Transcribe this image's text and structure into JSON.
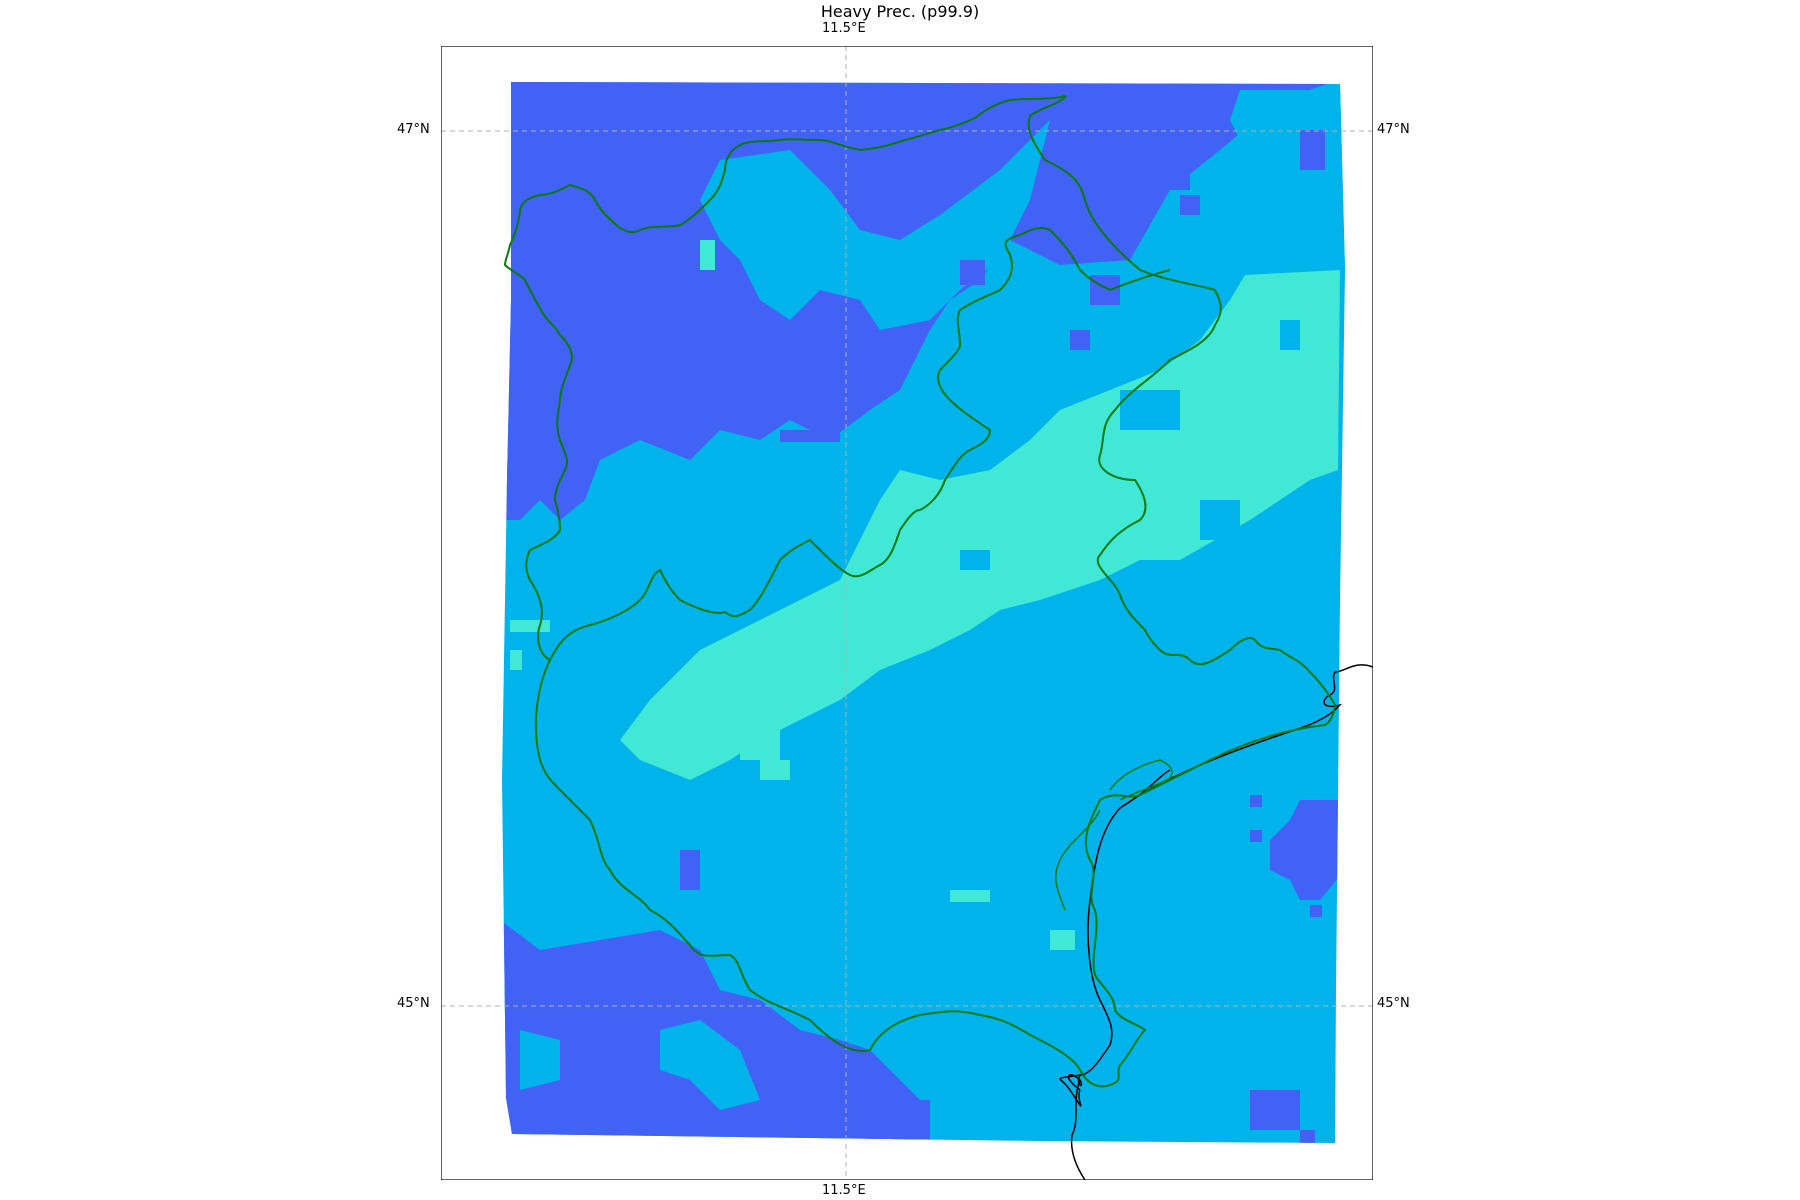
{
  "title": "Heavy Prec. (p99.9)",
  "gridlines": {
    "longitude_labels": [
      "11.5°E",
      "11.5°E"
    ],
    "latitude_labels": [
      "47°N",
      "47°N",
      "45°N",
      "45°N"
    ]
  },
  "colors": {
    "low": "#4262f5",
    "mid": "#00b4eb",
    "high": "#40e8d5",
    "region_border": "#0a7a0a",
    "coastline": "#000000",
    "gridline": "#b0b0b0"
  },
  "map": {
    "projection": "rotated lat-lon",
    "field": "heavy precipitation p99.9 categories",
    "grid": "dashed"
  }
}
